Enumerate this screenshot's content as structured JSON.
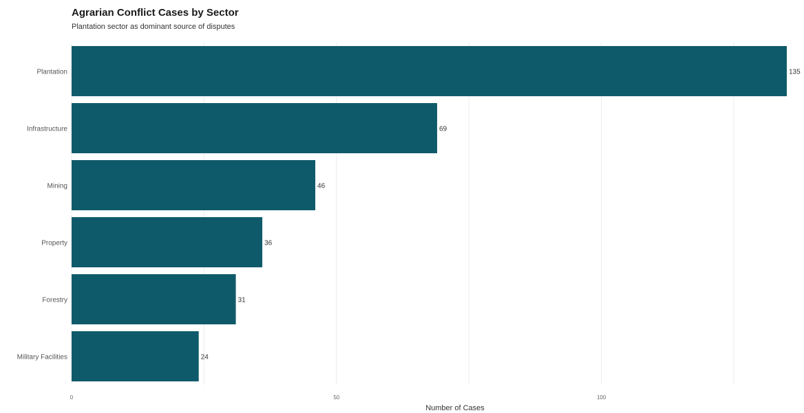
{
  "chart_data": {
    "type": "bar",
    "orientation": "horizontal",
    "title": "Agrarian Conflict Cases by Sector",
    "subtitle": "Plantation sector as dominant source of disputes",
    "xlabel": "Number of Cases",
    "ylabel": "",
    "categories": [
      "Plantation",
      "Infrastructure",
      "Mining",
      "Property",
      "Forestry",
      "Military Facilities"
    ],
    "values": [
      135,
      69,
      46,
      36,
      31,
      24
    ],
    "xlim": [
      0,
      135
    ],
    "xticks": [
      0,
      50,
      100
    ],
    "grid": true,
    "legend": "none",
    "colors": {
      "bar": "#0f5a6a",
      "grid": "#ececec"
    }
  }
}
